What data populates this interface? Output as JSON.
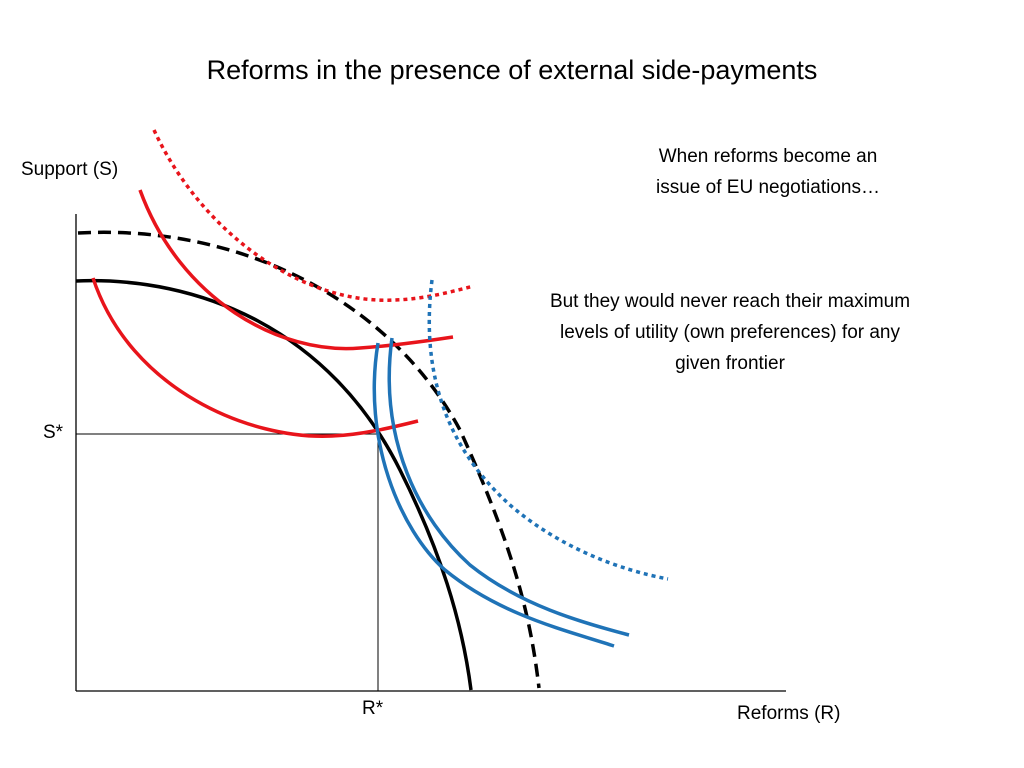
{
  "slide": {
    "title": "Reforms in the presence of external side-payments",
    "notes": {
      "top": "When reforms become an issue of EU negotiations…",
      "middle": "But they would never reach their maximum levels of utility (own preferences) for any given frontier"
    }
  },
  "axes": {
    "y_label": "Support (S)",
    "x_label": "Reforms (R)",
    "s_star": "S*",
    "r_star": "R*"
  },
  "colors": {
    "frontier": "#000000",
    "red_indifference": "#e8141b",
    "blue_indifference": "#1f73b7",
    "guide": "#000000"
  },
  "curves": [
    {
      "id": "frontier",
      "kind": "possibility-frontier",
      "style": "solid",
      "color": "frontier"
    },
    {
      "id": "frontier-expanded",
      "kind": "possibility-frontier",
      "style": "dashed",
      "color": "frontier"
    },
    {
      "id": "red-low",
      "kind": "indifference-curve",
      "style": "solid",
      "color": "red_indifference"
    },
    {
      "id": "red-mid",
      "kind": "indifference-curve",
      "style": "solid",
      "color": "red_indifference"
    },
    {
      "id": "red-high",
      "kind": "indifference-curve",
      "style": "dotted",
      "color": "red_indifference"
    },
    {
      "id": "blue-low",
      "kind": "indifference-curve",
      "style": "solid",
      "color": "blue_indifference"
    },
    {
      "id": "blue-mid",
      "kind": "indifference-curve",
      "style": "solid",
      "color": "blue_indifference"
    },
    {
      "id": "blue-high",
      "kind": "indifference-curve",
      "style": "dotted",
      "color": "blue_indifference"
    }
  ]
}
